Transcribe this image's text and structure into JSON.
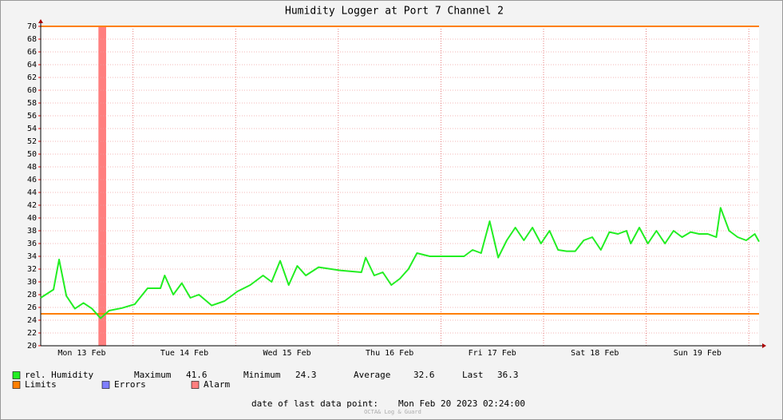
{
  "chart_data": {
    "type": "line",
    "title": "Humidity Logger at Port 7 Channel 2",
    "x": [
      0,
      3,
      4.3,
      6,
      8,
      10,
      12,
      14,
      16,
      19,
      22,
      25,
      28,
      29,
      31,
      33,
      35,
      37,
      40,
      43,
      46,
      49,
      52,
      54,
      56,
      58,
      60,
      62,
      65,
      70,
      75,
      76,
      78,
      80,
      82,
      84,
      86,
      88,
      91,
      95,
      99,
      101,
      103,
      105,
      107,
      109,
      111,
      113,
      115,
      117,
      119,
      121,
      123,
      125,
      127,
      129,
      131,
      133,
      135,
      137,
      138,
      140,
      142,
      144,
      146,
      148,
      150,
      152,
      154,
      156,
      158,
      159,
      161,
      163,
      165,
      167,
      168
    ],
    "series": [
      {
        "name": "rel. Humidity",
        "color": "#22ee22",
        "values": [
          27.5,
          28.8,
          33.5,
          27.8,
          25.8,
          26.7,
          25.8,
          24.3,
          25.5,
          25.9,
          26.5,
          29,
          29,
          31,
          28,
          29.8,
          27.5,
          28,
          26.3,
          27,
          28.5,
          29.5,
          31,
          30,
          33.3,
          29.5,
          32.5,
          31,
          32.3,
          31.8,
          31.5,
          33.8,
          31,
          31.5,
          29.5,
          30.5,
          32,
          34.5,
          34,
          34,
          34,
          35,
          34.5,
          39.5,
          33.8,
          36.5,
          38.5,
          36.5,
          38.5,
          36,
          38,
          35,
          34.8,
          34.8,
          36.5,
          37,
          35,
          37.8,
          37.5,
          38,
          36,
          38.5,
          36,
          38,
          36,
          38,
          37,
          37.8,
          37.5,
          37.5,
          37,
          41.6,
          38,
          37,
          36.5,
          37.5,
          36.3
        ]
      }
    ],
    "limits": {
      "name": "Limits",
      "color": "#ff7f00",
      "values": [
        25,
        70
      ]
    },
    "errors": {
      "name": "Errors",
      "color": "#7f7fff"
    },
    "alarm": {
      "name": "Alarm",
      "color": "#ff7f7f",
      "ranges": [
        [
          13.5,
          15.3
        ]
      ]
    },
    "stats": [
      {
        "label": "Maximum",
        "value": 41.6
      },
      {
        "label": "Minimum",
        "value": 24.3
      },
      {
        "label": "Average",
        "value": 32.6
      },
      {
        "label": "Last",
        "value": 36.3
      }
    ],
    "xlim": [
      0,
      168
    ],
    "xticks": [
      {
        "value": 9.6,
        "label": "Mon 13 Feb"
      },
      {
        "value": 33.6,
        "label": "Tue 14 Feb"
      },
      {
        "value": 57.6,
        "label": "Wed 15 Feb"
      },
      {
        "value": 81.6,
        "label": "Thu 16 Feb"
      },
      {
        "value": 105.6,
        "label": "Fri 17 Feb"
      },
      {
        "value": 129.6,
        "label": "Sat 18 Feb"
      },
      {
        "value": 153.6,
        "label": "Sun 19 Feb"
      }
    ],
    "xgrid": [
      21.6,
      45.6,
      69.6,
      93.6,
      117.6,
      141.6,
      165.6
    ],
    "ylim": [
      20,
      70
    ],
    "yticks": [
      20,
      22,
      24,
      26,
      28,
      30,
      32,
      34,
      36,
      38,
      40,
      42,
      44,
      46,
      48,
      50,
      52,
      54,
      56,
      58,
      60,
      62,
      64,
      66,
      68,
      70
    ],
    "grid": true,
    "footer_label": "date of last data point:",
    "footer_value": "Mon Feb 20 2023 02:24:00",
    "watermark": "OCTA& Log & Guard"
  }
}
